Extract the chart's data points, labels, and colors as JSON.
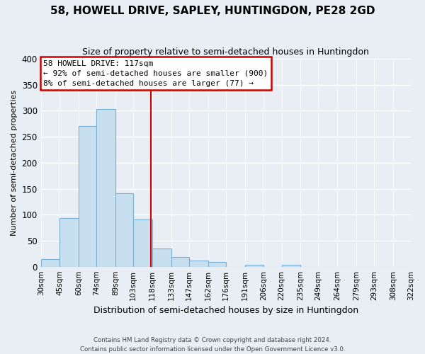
{
  "title": "58, HOWELL DRIVE, SAPLEY, HUNTINGDON, PE28 2GD",
  "subtitle": "Size of property relative to semi-detached houses in Huntingdon",
  "xlabel": "Distribution of semi-detached houses by size in Huntingdon",
  "ylabel": "Number of semi-detached properties",
  "bin_labels": [
    "30sqm",
    "45sqm",
    "60sqm",
    "74sqm",
    "89sqm",
    "103sqm",
    "118sqm",
    "133sqm",
    "147sqm",
    "162sqm",
    "176sqm",
    "191sqm",
    "206sqm",
    "220sqm",
    "235sqm",
    "249sqm",
    "264sqm",
    "279sqm",
    "293sqm",
    "308sqm",
    "322sqm"
  ],
  "bin_edges": [
    30,
    45,
    60,
    74,
    89,
    103,
    118,
    133,
    147,
    162,
    176,
    191,
    206,
    220,
    235,
    249,
    264,
    279,
    293,
    308,
    322
  ],
  "bar_heights": [
    15,
    93,
    270,
    304,
    141,
    91,
    35,
    18,
    12,
    9,
    0,
    4,
    0,
    4,
    0,
    0,
    0,
    0,
    0,
    0
  ],
  "bar_color": "#c8dff0",
  "bar_edge_color": "#7aafd4",
  "property_line_x": 117,
  "property_line_color": "#cc0000",
  "ylim": [
    0,
    400
  ],
  "yticks": [
    0,
    50,
    100,
    150,
    200,
    250,
    300,
    350,
    400
  ],
  "annotation_title": "58 HOWELL DRIVE: 117sqm",
  "annotation_line1": "← 92% of semi-detached houses are smaller (900)",
  "annotation_line2": "8% of semi-detached houses are larger (77) →",
  "footer_line1": "Contains HM Land Registry data © Crown copyright and database right 2024.",
  "footer_line2": "Contains public sector information licensed under the Open Government Licence v3.0.",
  "background_color": "#e8eef4",
  "plot_bg_color": "#e8eef4",
  "grid_color": "#ffffff",
  "title_fontsize": 11,
  "subtitle_fontsize": 9
}
